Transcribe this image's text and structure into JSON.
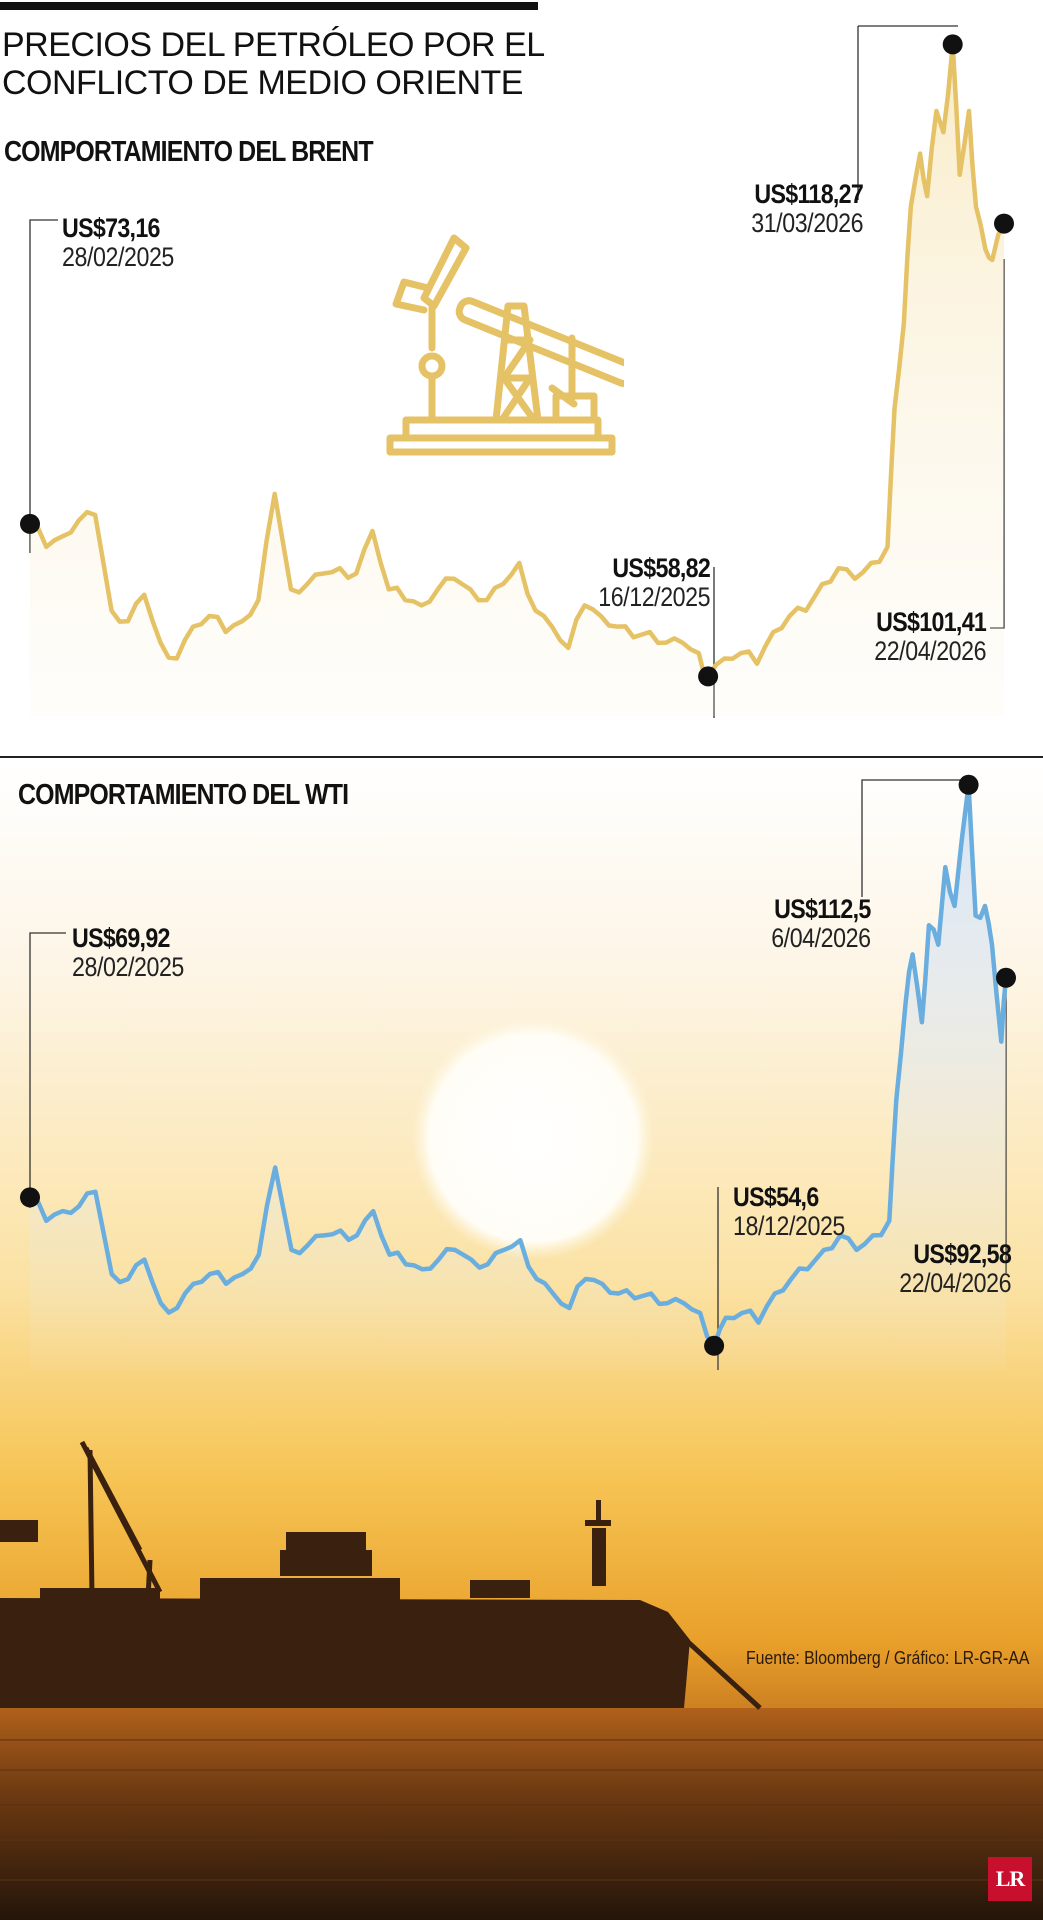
{
  "header": {
    "title_line1": "PRECIOS DEL PETRÓLEO POR EL",
    "title_line2": "CONFLICTO DE MEDIO ORIENTE"
  },
  "colors": {
    "brent": "#e6c266",
    "wti": "#6aaee0",
    "marker": "#111111",
    "logo": "#c8102e"
  },
  "icons": {
    "brent": "oil-pumpjack-icon",
    "logo": "lr-logo"
  },
  "source": "Fuente: Bloomberg / Gráfico: LR-GR-AA",
  "logo": "LR",
  "chart_data": [
    {
      "type": "line",
      "title": "COMPORTAMIENTO DEL BRENT",
      "x_range": [
        "28/02/2025",
        "22/04/2026"
      ],
      "ylim": [
        55,
        120
      ],
      "grid": false,
      "annotations": [
        {
          "value": "US$73,16",
          "date": "28/02/2025",
          "y": 73.16
        },
        {
          "value": "US$58,82",
          "date": "16/12/2025",
          "y": 58.82
        },
        {
          "value": "US$118,27",
          "date": "31/03/2026",
          "y": 118.27
        },
        {
          "value": "US$101,41",
          "date": "22/04/2026",
          "y": 101.41
        }
      ],
      "x": [
        "28/02/2025",
        "07/03/2025",
        "14/03/2025",
        "21/03/2025",
        "28/03/2025",
        "04/04/2025",
        "11/04/2025",
        "18/04/2025",
        "25/04/2025",
        "02/05/2025",
        "09/05/2025",
        "16/05/2025",
        "23/05/2025",
        "30/05/2025",
        "06/06/2025",
        "13/06/2025",
        "20/06/2025",
        "27/06/2025",
        "04/07/2025",
        "11/07/2025",
        "18/07/2025",
        "25/07/2025",
        "01/08/2025",
        "08/08/2025",
        "15/08/2025",
        "22/08/2025",
        "29/08/2025",
        "05/09/2025",
        "12/09/2025",
        "19/09/2025",
        "26/09/2025",
        "03/10/2025",
        "10/10/2025",
        "17/10/2025",
        "24/10/2025",
        "31/10/2025",
        "07/11/2025",
        "14/11/2025",
        "21/11/2025",
        "28/11/2025",
        "05/12/2025",
        "12/12/2025",
        "16/12/2025",
        "23/12/2025",
        "30/12/2025",
        "06/01/2026",
        "13/01/2026",
        "20/01/2026",
        "27/01/2026",
        "03/02/2026",
        "10/02/2026",
        "17/02/2026",
        "24/02/2026",
        "03/03/2026",
        "06/03/2026",
        "10/03/2026",
        "13/03/2026",
        "17/03/2026",
        "20/03/2026",
        "24/03/2026",
        "27/03/2026",
        "31/03/2026",
        "03/04/2026",
        "07/04/2026",
        "10/04/2026",
        "14/04/2026",
        "17/04/2026",
        "22/04/2026"
      ],
      "values": [
        73.16,
        71.0,
        72.0,
        73.5,
        74.0,
        65.0,
        64.0,
        66.5,
        62.0,
        60.5,
        63.5,
        64.5,
        63.0,
        64.0,
        66.0,
        76.0,
        67.0,
        67.5,
        68.5,
        69.0,
        68.5,
        72.5,
        67.0,
        66.0,
        65.5,
        67.0,
        68.0,
        67.0,
        66.0,
        67.5,
        69.5,
        65.0,
        63.5,
        61.5,
        65.5,
        64.5,
        63.5,
        62.5,
        63.0,
        62.0,
        62.0,
        61.0,
        58.82,
        60.5,
        61.0,
        60.0,
        63.0,
        64.5,
        65.0,
        67.5,
        69.0,
        68.0,
        69.5,
        71.0,
        84.0,
        92.0,
        103.0,
        108.0,
        104.0,
        112.0,
        110.0,
        118.27,
        106.0,
        112.0,
        103.0,
        99.0,
        98.0,
        101.41
      ],
      "series": [
        {
          "name": "Brent"
        }
      ]
    },
    {
      "type": "line",
      "title": "COMPORTAMIENTO DEL WTI",
      "x_range": [
        "28/02/2025",
        "22/04/2026"
      ],
      "ylim": [
        52,
        113
      ],
      "grid": false,
      "annotations": [
        {
          "value": "US$69,92",
          "date": "28/02/2025",
          "y": 69.92
        },
        {
          "value": "US$54,6",
          "date": "18/12/2025",
          "y": 54.6
        },
        {
          "value": "US$112,5",
          "date": "6/04/2026",
          "y": 112.5
        },
        {
          "value": "US$92,58",
          "date": "22/04/2026",
          "y": 92.58
        }
      ],
      "x": [
        "28/02/2025",
        "07/03/2025",
        "14/03/2025",
        "21/03/2025",
        "28/03/2025",
        "04/04/2025",
        "11/04/2025",
        "18/04/2025",
        "25/04/2025",
        "02/05/2025",
        "09/05/2025",
        "16/05/2025",
        "23/05/2025",
        "30/05/2025",
        "06/06/2025",
        "13/06/2025",
        "20/06/2025",
        "27/06/2025",
        "04/07/2025",
        "11/07/2025",
        "18/07/2025",
        "25/07/2025",
        "01/08/2025",
        "08/08/2025",
        "15/08/2025",
        "22/08/2025",
        "29/08/2025",
        "05/09/2025",
        "12/09/2025",
        "19/09/2025",
        "26/09/2025",
        "03/10/2025",
        "10/10/2025",
        "17/10/2025",
        "24/10/2025",
        "31/10/2025",
        "07/11/2025",
        "14/11/2025",
        "21/11/2025",
        "28/11/2025",
        "05/12/2025",
        "12/12/2025",
        "18/12/2025",
        "23/12/2025",
        "30/12/2025",
        "06/01/2026",
        "13/01/2026",
        "20/01/2026",
        "27/01/2026",
        "03/02/2026",
        "10/02/2026",
        "17/02/2026",
        "24/02/2026",
        "03/03/2026",
        "06/03/2026",
        "10/03/2026",
        "13/03/2026",
        "17/03/2026",
        "20/03/2026",
        "24/03/2026",
        "27/03/2026",
        "31/03/2026",
        "06/04/2026",
        "09/04/2026",
        "13/04/2026",
        "16/04/2026",
        "20/04/2026",
        "22/04/2026"
      ],
      "values": [
        69.92,
        67.5,
        68.5,
        69.0,
        70.5,
        62.0,
        61.5,
        63.5,
        59.0,
        58.5,
        61.0,
        62.0,
        61.0,
        62.0,
        64.0,
        73.0,
        64.5,
        65.0,
        66.0,
        66.5,
        66.0,
        68.5,
        64.0,
        63.0,
        62.5,
        63.5,
        64.5,
        63.5,
        63.0,
        64.5,
        65.5,
        61.5,
        60.0,
        58.5,
        61.5,
        61.0,
        60.0,
        59.5,
        60.0,
        59.0,
        59.0,
        58.0,
        54.6,
        57.5,
        58.0,
        57.0,
        60.0,
        61.5,
        62.5,
        64.5,
        66.0,
        64.5,
        66.0,
        67.5,
        80.0,
        90.0,
        95.0,
        88.0,
        98.0,
        96.0,
        104.0,
        100.0,
        112.5,
        99.0,
        100.0,
        96.0,
        86.0,
        92.58
      ],
      "series": [
        {
          "name": "WTI"
        }
      ]
    }
  ]
}
